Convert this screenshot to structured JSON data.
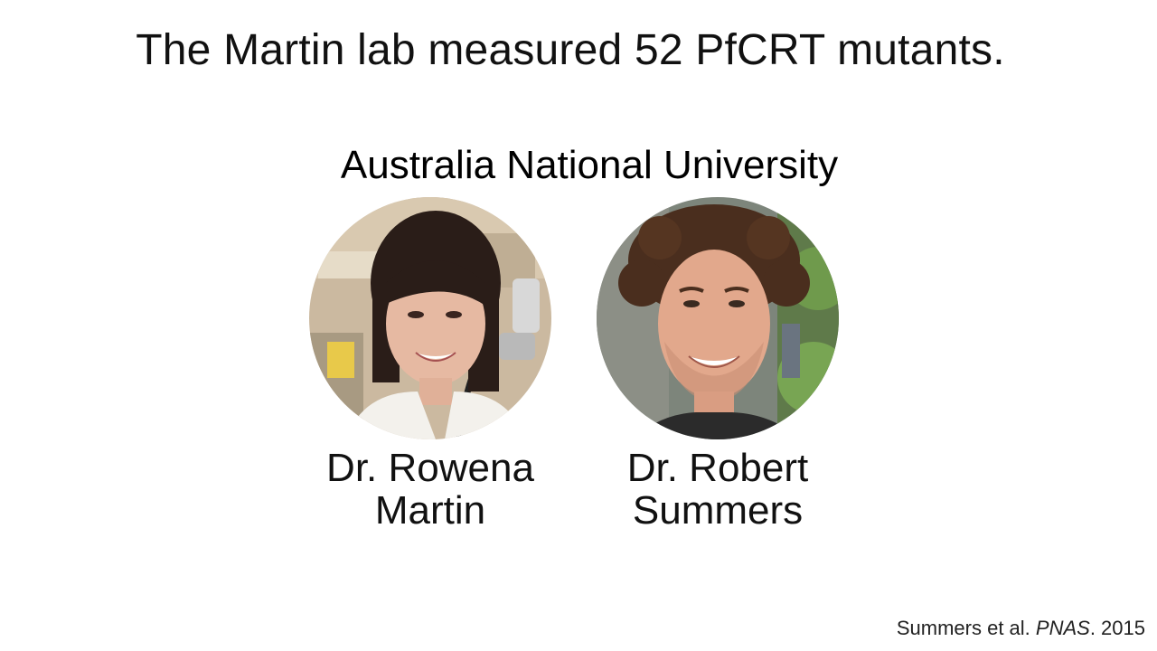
{
  "slide": {
    "title": "The Martin lab measured 52 PfCRT mutants.",
    "institution": "Australia National University"
  },
  "people": [
    {
      "name_line1": "Dr. Rowena",
      "name_line2": "Martin"
    },
    {
      "name_line1": "Dr. Robert",
      "name_line2": "Summers"
    }
  ],
  "citation": {
    "authors": "Summers et al. ",
    "journal": "PNAS",
    "year": ". 2015"
  },
  "colors": {
    "background": "#ffffff",
    "text": "#111111"
  }
}
